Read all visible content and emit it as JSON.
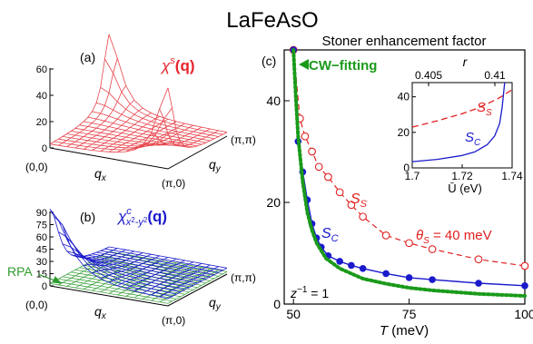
{
  "figure": {
    "title": "LaFeAsO",
    "panel_a": {
      "label": "(a)",
      "symbol": "χ",
      "sup": "s",
      "arg": "(q)",
      "z_ticks": [
        "0",
        "20",
        "40",
        "60"
      ],
      "corner_origin": "(0,0)",
      "corner_x": "(π,0)",
      "corner_y": "(π,π)",
      "axis_x": "q",
      "axis_x_sub": "x",
      "axis_y": "q",
      "axis_y_sub": "y",
      "colors": {
        "mesh": "#e8434b"
      }
    },
    "panel_b": {
      "label": "(b)",
      "symbol": "χ",
      "sup": "c",
      "sub": "x",
      "sub2": "2",
      "sub3": "-y",
      "sub4": "2",
      "arg": "(q)",
      "z_ticks": [
        "0",
        "15",
        "30",
        "45",
        "60",
        "75",
        "90"
      ],
      "rpa_label": "RPA",
      "corner_origin": "(0,0)",
      "corner_x": "(π,0)",
      "corner_y": "(π,π)",
      "axis_x": "q",
      "axis_x_sub": "x",
      "axis_y": "q",
      "axis_y_sub": "y",
      "colors": {
        "mesh": "#1a1acc",
        "rpa": "#2e9b2e"
      }
    },
    "panel_c": {
      "label": "(c)",
      "title": "Stoner enhancement factor",
      "cw_label": "CW−fitting",
      "ss_label": "S",
      "ss_sub": "S",
      "sc_label": "S",
      "sc_sub": "C",
      "theta_label": "θ",
      "theta_sub": "S",
      "theta_value": " = 40 meV",
      "z_label": "z",
      "z_sup": "−1",
      "z_value": " = 1",
      "xlabel": "T (meV)",
      "colors": {
        "ss": "#e02020",
        "sc": "#1a1acc",
        "cw": "#1a9a1a"
      }
    }
  },
  "chart_data": [
    {
      "type": "line",
      "panel": "c",
      "title": "Stoner enhancement factor",
      "xlabel": "T (meV)",
      "ylabel": "",
      "xlim": [
        48,
        100
      ],
      "ylim": [
        0,
        50
      ],
      "x_ticks": [
        50,
        75,
        100
      ],
      "y_ticks": [
        0,
        20,
        40
      ],
      "series": [
        {
          "name": "S_S",
          "style": "dashed-circles",
          "x": [
            50,
            51.4,
            52.5,
            54,
            55.5,
            57.5,
            60,
            62.5,
            65,
            70,
            75,
            80,
            90,
            100
          ],
          "y": [
            50,
            36.5,
            33,
            30,
            27,
            25,
            22,
            19.5,
            17.2,
            13.5,
            12,
            10.8,
            8.8,
            7.5
          ]
        },
        {
          "name": "S_C",
          "style": "solid-dots",
          "x": [
            50,
            51,
            52,
            53,
            54,
            55,
            56,
            57.5,
            60,
            62.5,
            65,
            70,
            75,
            80,
            90,
            100
          ],
          "y": [
            50,
            32,
            26,
            20.5,
            15.8,
            13,
            11.2,
            9.5,
            8.4,
            7.6,
            7,
            6,
            5.2,
            4.8,
            4.1,
            3.6
          ]
        },
        {
          "name": "CW-fitting",
          "style": "dotted",
          "x": [
            50,
            50.5,
            51,
            52,
            53,
            54,
            55,
            57,
            60,
            65,
            70,
            75,
            80,
            90,
            100
          ],
          "y": [
            50,
            41,
            33,
            24,
            18,
            14.5,
            12,
            9,
            7,
            5,
            4,
            3.2,
            2.7,
            2,
            1.6
          ]
        }
      ]
    },
    {
      "type": "line",
      "panel": "c-inset",
      "xlabel": "Ū (eV)",
      "top_xlabel": "r",
      "xlim": [
        1.7,
        1.74
      ],
      "ylim": [
        0,
        48
      ],
      "x_ticks": [
        1.7,
        1.72,
        1.74
      ],
      "x_tick_labels": [
        "1.7",
        "1.72",
        "1.74"
      ],
      "top_ticks": [
        "0.405",
        "0.41"
      ],
      "y_ticks": [
        0,
        20,
        40
      ],
      "series": [
        {
          "name": "S_S",
          "style": "dashed",
          "x": [
            1.7,
            1.705,
            1.71,
            1.715,
            1.72,
            1.725,
            1.73,
            1.735,
            1.74
          ],
          "y": [
            23,
            24.7,
            26.5,
            28.5,
            30.5,
            33,
            36,
            39.5,
            44
          ]
        },
        {
          "name": "S_C",
          "style": "solid",
          "x": [
            1.7,
            1.71,
            1.72,
            1.725,
            1.73,
            1.733,
            1.735,
            1.736,
            1.737
          ],
          "y": [
            3.5,
            4.8,
            7,
            9,
            13,
            18,
            25,
            34,
            48
          ]
        }
      ]
    }
  ]
}
